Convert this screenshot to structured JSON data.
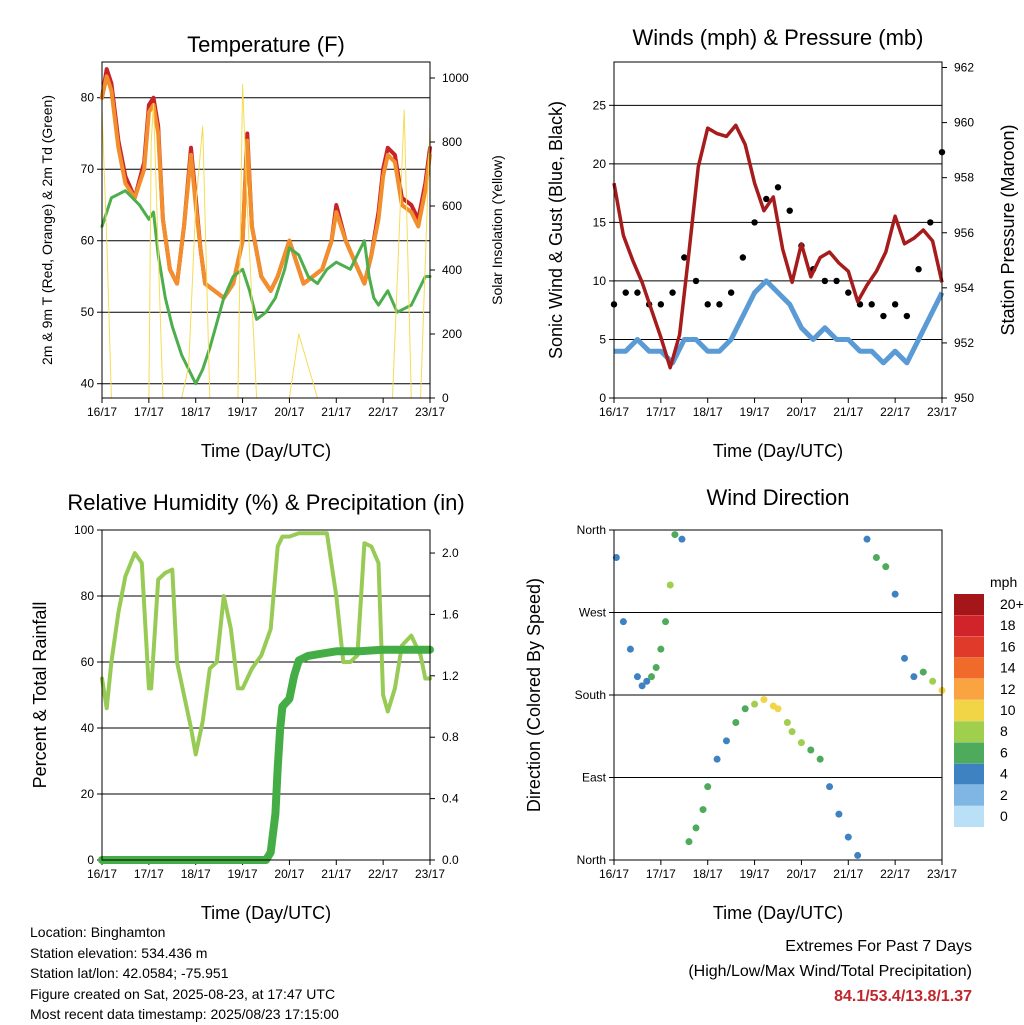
{
  "x_tick_labels": [
    "16/17",
    "17/17",
    "18/17",
    "19/17",
    "20/17",
    "21/17",
    "22/17",
    "23/17"
  ],
  "legend": {
    "title": "mph",
    "labels": [
      "20+",
      "18",
      "16",
      "14",
      "12",
      "10",
      "8",
      "6",
      "4",
      "2",
      "0"
    ],
    "colors": [
      "#a5161b",
      "#d0242a",
      "#e03a2b",
      "#f06a2a",
      "#f9a441",
      "#f2d547",
      "#9fcf4c",
      "#4eab5c",
      "#3e82c2",
      "#7fb6e3",
      "#b9e0f6"
    ]
  },
  "info": {
    "location": "Location: Binghamton",
    "elevation": "Station elevation: 534.436 m",
    "latlon": "Station lat/lon: 42.0584; -75.951",
    "created": "Figure created on Sat, 2025-08-23, at 17:47 UTC",
    "latest": "Most recent data timestamp: 2025/08/23 17:15:00"
  },
  "extremes": {
    "line1": "Extremes For Past 7 Days",
    "line2": "(High/Low/Max Wind/Total Precipitation)",
    "values": "84.1/53.4/13.8/1.37"
  },
  "chart_data": [
    {
      "type": "line",
      "title": "Temperature (F)",
      "xlabel": "Time (Day/UTC)",
      "ylabel": "2m & 9m T (Red, Orange) & 2m Td (Green)",
      "ylabel_right": "Solar Insolation (Yellow)",
      "ylim": [
        38,
        85
      ],
      "yticks": [
        40,
        50,
        60,
        70,
        80
      ],
      "ylim_right": [
        0,
        1050
      ],
      "yticks_right": [
        0,
        200,
        400,
        600,
        800,
        1000
      ],
      "grid": true,
      "series": [
        {
          "color": "#c8232a",
          "x": [
            0,
            0.1,
            0.2,
            0.35,
            0.5,
            0.7,
            0.9,
            1.0,
            1.1,
            1.2,
            1.3,
            1.45,
            1.6,
            1.75,
            1.9,
            2.0,
            2.1,
            2.2,
            2.4,
            2.6,
            2.8,
            3.0,
            3.1,
            3.2,
            3.4,
            3.6,
            3.75,
            3.9,
            4.0,
            4.1,
            4.3,
            4.5,
            4.7,
            4.9,
            5.0,
            5.2,
            5.4,
            5.6,
            5.75,
            5.9,
            6.0,
            6.1,
            6.25,
            6.4,
            6.6,
            6.75,
            6.9,
            7.0
          ],
          "y": [
            80,
            84,
            82,
            74,
            69,
            66,
            71,
            79,
            80,
            76,
            63,
            56,
            54,
            62,
            73,
            66,
            59,
            54,
            53,
            52,
            54,
            60,
            75,
            62,
            55,
            53,
            55,
            58,
            60,
            58,
            54,
            55,
            56,
            60,
            65,
            60,
            57,
            54,
            58,
            64,
            70,
            73,
            72,
            66,
            65,
            63,
            68,
            73
          ]
        },
        {
          "color": "#f28e2b",
          "x": [
            0,
            0.1,
            0.2,
            0.35,
            0.5,
            0.7,
            0.9,
            1.0,
            1.1,
            1.2,
            1.3,
            1.45,
            1.6,
            1.75,
            1.9,
            2.0,
            2.1,
            2.2,
            2.4,
            2.6,
            2.8,
            3.0,
            3.1,
            3.2,
            3.4,
            3.6,
            3.75,
            3.9,
            4.0,
            4.1,
            4.3,
            4.5,
            4.7,
            4.9,
            5.0,
            5.2,
            5.4,
            5.6,
            5.75,
            5.9,
            6.0,
            6.1,
            6.25,
            6.4,
            6.6,
            6.75,
            6.9,
            7.0
          ],
          "y": [
            80,
            83,
            81,
            73,
            68,
            66,
            70,
            78,
            79,
            75,
            63,
            56,
            54,
            62,
            72,
            65,
            59,
            54,
            53,
            52,
            54,
            60,
            74,
            62,
            55,
            53,
            55,
            58,
            60,
            58,
            54,
            55,
            56,
            60,
            64,
            60,
            57,
            54,
            58,
            63,
            69,
            72,
            71,
            65,
            64,
            62,
            67,
            72
          ]
        },
        {
          "color": "#4cae4c",
          "x": [
            0,
            0.2,
            0.5,
            0.8,
            1.0,
            1.1,
            1.2,
            1.35,
            1.5,
            1.7,
            1.85,
            2.0,
            2.15,
            2.3,
            2.6,
            2.8,
            3.0,
            3.15,
            3.3,
            3.5,
            3.7,
            3.9,
            4.0,
            4.2,
            4.4,
            4.6,
            4.8,
            5.0,
            5.3,
            5.6,
            5.7,
            5.8,
            5.9,
            6.0,
            6.1,
            6.3,
            6.6,
            6.9,
            7.0
          ],
          "y": [
            62,
            66,
            67,
            65,
            63,
            64,
            58,
            52,
            48,
            44,
            42,
            40,
            42,
            45,
            52,
            55,
            56,
            53,
            49,
            50,
            52,
            56,
            59,
            58,
            55,
            54,
            56,
            57,
            56,
            60,
            55,
            52,
            51,
            52,
            53,
            50,
            51,
            55,
            55
          ]
        },
        {
          "color": "#f6dc55",
          "axis": "right",
          "x": [
            0,
            0.1,
            0.2,
            0.3,
            0.4,
            0.55,
            0.7,
            0.8,
            1.0,
            1.05,
            1.1,
            1.3,
            1.5,
            1.7,
            1.85,
            2.0,
            2.15,
            2.3,
            2.5,
            2.7,
            2.9,
            3.0,
            3.1,
            3.3,
            3.5,
            3.7,
            4.0,
            4.2,
            4.6,
            5.0,
            5.2,
            5.5,
            5.8,
            6.0,
            6.2,
            6.45,
            6.6,
            6.8,
            7.0
          ],
          "y": [
            900,
            500,
            0,
            0,
            0,
            0,
            0,
            0,
            0,
            800,
            920,
            0,
            0,
            0,
            100,
            600,
            850,
            0,
            0,
            0,
            0,
            980,
            600,
            0,
            0,
            0,
            0,
            200,
            0,
            0,
            0,
            0,
            0,
            0,
            0,
            900,
            0,
            0,
            850
          ]
        }
      ]
    },
    {
      "type": "scatter",
      "title": "Winds (mph) & Pressure (mb)",
      "xlabel": "Time (Day/UTC)",
      "ylabel": "Sonic Wind & Gust (Blue, Black)",
      "ylabel_right": "Station Pressure (Maroon)",
      "ylim": [
        0,
        28.7
      ],
      "yticks": [
        0,
        5,
        10,
        15,
        20,
        25
      ],
      "ylim_right": [
        950,
        962.2
      ],
      "yticks_right": [
        950,
        952,
        954,
        956,
        958,
        960,
        962
      ],
      "grid": true,
      "series": [
        {
          "color": "#5b9bd5",
          "x": [
            0,
            0.25,
            0.5,
            0.75,
            1.0,
            1.25,
            1.5,
            1.75,
            2.0,
            2.25,
            2.5,
            2.75,
            3.0,
            3.25,
            3.5,
            3.75,
            4.0,
            4.25,
            4.5,
            4.75,
            5.0,
            5.25,
            5.5,
            5.75,
            6.0,
            6.25,
            6.5,
            6.75,
            7.0
          ],
          "y": [
            4,
            4,
            5,
            4,
            4,
            3,
            5,
            5,
            4,
            4,
            5,
            7,
            9,
            10,
            9,
            8,
            6,
            5,
            6,
            5,
            5,
            4,
            4,
            3,
            4,
            3,
            5,
            7,
            9
          ]
        },
        {
          "color": "#000000",
          "x": [
            0,
            0.25,
            0.5,
            0.75,
            1.0,
            1.25,
            1.5,
            1.75,
            2.0,
            2.25,
            2.5,
            2.75,
            3.0,
            3.25,
            3.5,
            3.75,
            4.0,
            4.25,
            4.5,
            4.75,
            5.0,
            5.25,
            5.5,
            5.75,
            6.0,
            6.25,
            6.5,
            6.75,
            7.0
          ],
          "y": [
            8,
            9,
            9,
            8,
            8,
            9,
            12,
            10,
            8,
            8,
            9,
            12,
            15,
            17,
            18,
            16,
            13,
            11,
            10,
            10,
            9,
            8,
            8,
            7,
            8,
            7,
            11,
            15,
            21
          ]
        },
        {
          "color": "#a61c1c",
          "axis": "right",
          "x": [
            0,
            0.2,
            0.4,
            0.6,
            0.8,
            1.0,
            1.2,
            1.4,
            1.6,
            1.8,
            2.0,
            2.2,
            2.4,
            2.6,
            2.8,
            3.0,
            3.2,
            3.4,
            3.6,
            3.8,
            4.0,
            4.2,
            4.4,
            4.6,
            4.8,
            5.0,
            5.2,
            5.4,
            5.6,
            5.8,
            6.0,
            6.2,
            6.4,
            6.6,
            6.8,
            7.0
          ],
          "y": [
            957.8,
            955.9,
            955.0,
            954.2,
            953.2,
            952.2,
            951.1,
            952.3,
            955.3,
            958.4,
            959.8,
            959.6,
            959.5,
            959.9,
            959.2,
            957.8,
            956.8,
            957.3,
            955.4,
            954.2,
            955.6,
            954.4,
            955.1,
            955.3,
            954.9,
            954.6,
            953.5,
            954.1,
            954.6,
            955.3,
            956.6,
            955.6,
            955.8,
            956.1,
            955.7,
            954.2
          ]
        }
      ]
    },
    {
      "type": "line",
      "title": "Relative Humidity (%) & Precipitation (in)",
      "xlabel": "Time (Day/UTC)",
      "ylabel": "Percent & Total Rainfall",
      "ylim": [
        0,
        100
      ],
      "yticks": [
        0,
        20,
        40,
        60,
        80,
        100
      ],
      "ylim_right": [
        0,
        2.15
      ],
      "yticks_right": [
        0.0,
        0.4,
        0.8,
        1.2,
        1.6,
        2.0
      ],
      "grid": true,
      "series": [
        {
          "color": "#98cb55",
          "x": [
            0,
            0.1,
            0.2,
            0.35,
            0.5,
            0.7,
            0.85,
            1.0,
            1.05,
            1.2,
            1.35,
            1.5,
            1.6,
            1.75,
            1.9,
            2.0,
            2.15,
            2.3,
            2.45,
            2.6,
            2.75,
            2.9,
            3.0,
            3.2,
            3.4,
            3.6,
            3.75,
            3.85,
            4.0,
            4.2,
            4.4,
            4.6,
            4.8,
            5.0,
            5.15,
            5.3,
            5.45,
            5.6,
            5.75,
            5.9,
            6.0,
            6.1,
            6.25,
            6.4,
            6.6,
            6.8,
            6.9,
            7.0
          ],
          "y": [
            55,
            46,
            60,
            75,
            86,
            93,
            90,
            52,
            52,
            85,
            87,
            88,
            60,
            50,
            40,
            32,
            42,
            58,
            60,
            80,
            70,
            52,
            52,
            58,
            62,
            70,
            95,
            98,
            98,
            99,
            99,
            99,
            99,
            80,
            60,
            60,
            62,
            96,
            95,
            90,
            50,
            45,
            52,
            65,
            68,
            62,
            55,
            55
          ]
        },
        {
          "color": "#45ad45",
          "axis": "right",
          "x": [
            0,
            1,
            2,
            3,
            3.5,
            3.6,
            3.7,
            3.75,
            3.8,
            3.85,
            4.0,
            4.1,
            4.2,
            4.4,
            4.6,
            4.8,
            5.0,
            5.5,
            6.0,
            6.5,
            7.0
          ],
          "y": [
            0,
            0,
            0,
            0,
            0,
            0.05,
            0.3,
            0.6,
            0.85,
            1.0,
            1.05,
            1.2,
            1.3,
            1.33,
            1.34,
            1.35,
            1.36,
            1.36,
            1.37,
            1.37,
            1.37
          ]
        }
      ]
    },
    {
      "type": "scatter",
      "title": "Wind Direction",
      "xlabel": "Time (Day/UTC)",
      "ylabel": "Direction (Colored By Speed)",
      "yticks": [
        "North",
        "East",
        "South",
        "West",
        "North"
      ],
      "grid": true,
      "series": [
        {
          "x": [
            0.05,
            0.2,
            0.35,
            0.5,
            0.6,
            0.7,
            0.8,
            0.9,
            1.0,
            1.1,
            1.2,
            1.3,
            1.45,
            1.6,
            1.75,
            1.9,
            2.0,
            2.2,
            2.4,
            2.6,
            2.8,
            3.0,
            3.2,
            3.4,
            3.5,
            3.7,
            3.8,
            4.0,
            4.2,
            4.4,
            4.6,
            4.8,
            5.0,
            5.2,
            5.4,
            5.6,
            5.8,
            6.0,
            6.2,
            6.4,
            6.6,
            6.8,
            7.0
          ],
          "y": [
            330,
            260,
            230,
            200,
            190,
            195,
            200,
            210,
            230,
            260,
            300,
            355,
            350,
            20,
            35,
            55,
            80,
            110,
            130,
            150,
            165,
            170,
            175,
            168,
            165,
            150,
            140,
            128,
            120,
            110,
            80,
            50,
            25,
            5,
            350,
            330,
            320,
            290,
            220,
            200,
            205,
            195,
            185
          ],
          "speed_mph": [
            3,
            3,
            4,
            4,
            3,
            4,
            5,
            5,
            6,
            6,
            7,
            5,
            4,
            5,
            6,
            6,
            5,
            4,
            4,
            5,
            6,
            8,
            9,
            10,
            9,
            8,
            7,
            7,
            6,
            5,
            4,
            3,
            3,
            3,
            4,
            5,
            6,
            4,
            3,
            4,
            6,
            8,
            9
          ]
        }
      ]
    }
  ]
}
